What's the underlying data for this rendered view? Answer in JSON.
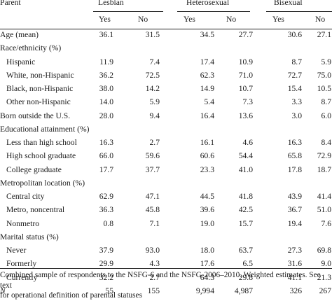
{
  "table": {
    "group_header": "Parent",
    "groups": [
      "Lesbian",
      "Heterosexual",
      "Bisexual"
    ],
    "subheaders": [
      "Yes",
      "No",
      "Yes",
      "No",
      "Yes",
      "No"
    ],
    "rows": [
      {
        "label": "Age (mean)",
        "indent": false,
        "values": [
          "36.1",
          "31.5",
          "34.5",
          "27.7",
          "30.6",
          "27.1"
        ]
      },
      {
        "label": "Race/ethnicity (%)",
        "indent": false,
        "values": [
          "",
          "",
          "",
          "",
          "",
          ""
        ]
      },
      {
        "label": "Hispanic",
        "indent": true,
        "values": [
          "11.9",
          "7.4",
          "17.4",
          "10.9",
          "8.7",
          "5.9"
        ]
      },
      {
        "label": "White, non-Hispanic",
        "indent": true,
        "values": [
          "36.2",
          "72.5",
          "62.3",
          "71.0",
          "72.7",
          "75.0"
        ]
      },
      {
        "label": "Black, non-Hispanic",
        "indent": true,
        "values": [
          "38.0",
          "14.2",
          "14.9",
          "10.7",
          "15.4",
          "10.5"
        ]
      },
      {
        "label": "Other non-Hispanic",
        "indent": true,
        "values": [
          "14.0",
          "5.9",
          "5.4",
          "7.3",
          "3.3",
          "8.7"
        ]
      },
      {
        "label": "Born outside the U.S.",
        "indent": false,
        "values": [
          "28.0",
          "9.4",
          "16.4",
          "13.6",
          "3.0",
          "6.0"
        ]
      },
      {
        "label": "Educational attainment (%)",
        "indent": false,
        "values": [
          "",
          "",
          "",
          "",
          "",
          ""
        ]
      },
      {
        "label": "Less than high school",
        "indent": true,
        "values": [
          "16.3",
          "2.7",
          "16.1",
          "4.6",
          "16.3",
          "8.4"
        ]
      },
      {
        "label": "High school graduate",
        "indent": true,
        "values": [
          "66.0",
          "59.6",
          "60.6",
          "54.4",
          "65.8",
          "72.9"
        ]
      },
      {
        "label": "College graduate",
        "indent": true,
        "values": [
          "17.7",
          "37.7",
          "23.3",
          "41.0",
          "17.8",
          "18.7"
        ]
      },
      {
        "label": "Metropolitan location (%)",
        "indent": false,
        "values": [
          "",
          "",
          "",
          "",
          "",
          ""
        ]
      },
      {
        "label": "Central city",
        "indent": true,
        "values": [
          "62.9",
          "47.1",
          "44.5",
          "41.8",
          "43.9",
          "41.4"
        ]
      },
      {
        "label": "Metro, noncentral",
        "indent": true,
        "values": [
          "36.3",
          "45.8",
          "39.6",
          "42.5",
          "36.7",
          "51.0"
        ]
      },
      {
        "label": "Nonmetro",
        "indent": true,
        "values": [
          "0.8",
          "7.1",
          "19.0",
          "15.7",
          "19.4",
          "7.6"
        ]
      },
      {
        "label": "Marital status (%)",
        "indent": false,
        "values": [
          "",
          "",
          "",
          "",
          "",
          ""
        ]
      },
      {
        "label": "Never",
        "indent": true,
        "values": [
          "37.9",
          "93.0",
          "18.0",
          "63.7",
          "27.3",
          "69.8"
        ]
      },
      {
        "label": "Formerly",
        "indent": true,
        "values": [
          "29.9",
          "4.3",
          "17.6",
          "6.5",
          "31.6",
          "9.0"
        ]
      },
      {
        "label": "Currently",
        "indent": true,
        "values": [
          "32.2",
          "2.7",
          "64.3",
          "29.8",
          "41.1",
          "21.3"
        ]
      },
      {
        "label": "N",
        "indent": false,
        "italic": true,
        "values": [
          "55",
          "155",
          "9,994",
          "4,987",
          "326",
          "267"
        ]
      }
    ]
  },
  "footnote": {
    "line1": "Combined sample of respondents to the NSFG-6 and the NSFG-2006–2010. Weighted estimates. See text",
    "line2": "for operational definition of parental statuses"
  }
}
